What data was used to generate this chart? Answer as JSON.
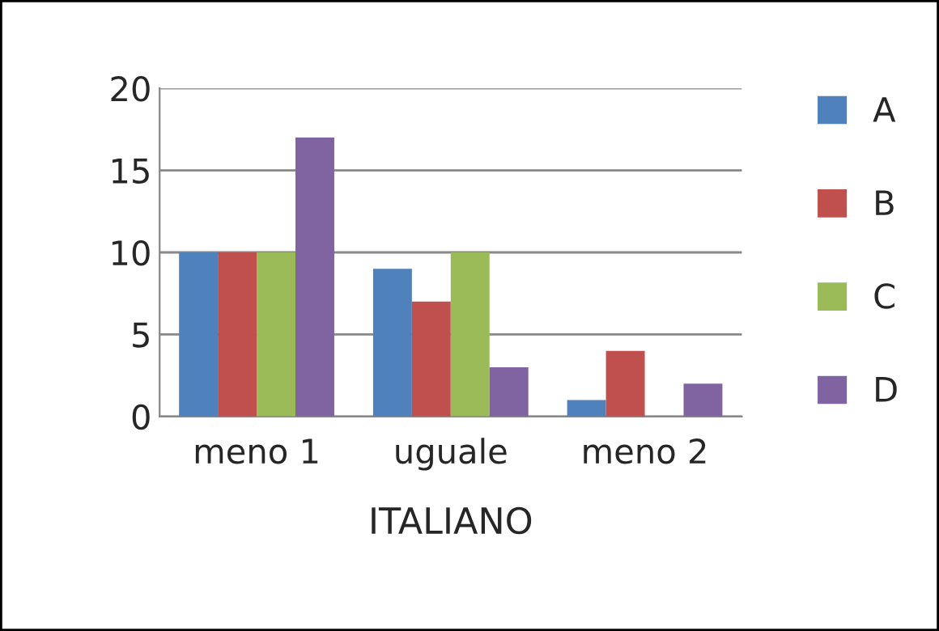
{
  "chart_data": {
    "type": "bar",
    "xlabel": "ITALIANO",
    "categories": [
      "meno 1",
      "uguale",
      "meno 2"
    ],
    "series": [
      {
        "name": "A",
        "color": "#4f81bd",
        "values": [
          10,
          9,
          1
        ]
      },
      {
        "name": "B",
        "color": "#c0504d",
        "values": [
          10,
          7,
          4
        ]
      },
      {
        "name": "C",
        "color": "#9bbb59",
        "values": [
          10,
          10,
          null
        ]
      },
      {
        "name": "D",
        "color": "#8064a2",
        "values": [
          17,
          3,
          2
        ]
      }
    ],
    "ylim": [
      0,
      20
    ],
    "yticks": [
      0,
      5,
      10,
      15,
      20
    ],
    "grid": "y",
    "legend": "right"
  }
}
